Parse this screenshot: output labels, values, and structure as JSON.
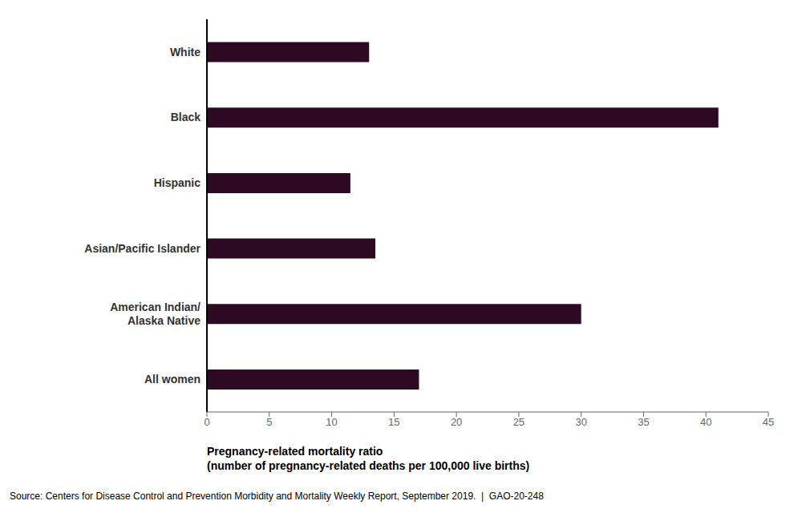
{
  "chart_data": {
    "type": "bar",
    "orientation": "horizontal",
    "categories": [
      "White",
      "Black",
      "Hispanic",
      "Asian/Pacific Islander",
      "American Indian/\nAlaska Native",
      "All women"
    ],
    "values": [
      13.0,
      41.0,
      11.5,
      13.5,
      30.0,
      17.0
    ],
    "color": "#2d0a22",
    "xlim": [
      0,
      45
    ],
    "xticks": [
      0,
      5,
      10,
      15,
      20,
      25,
      30,
      35,
      40,
      45
    ],
    "xlabel": "Pregnancy-related mortality ratio\n(number of pregnancy-related deaths per 100,000 live births)",
    "source": "Source: Centers for Disease Control and Prevention Morbidity and Mortality Weekly Report, September 2019.  |  GAO-20-248",
    "grid": false
  }
}
